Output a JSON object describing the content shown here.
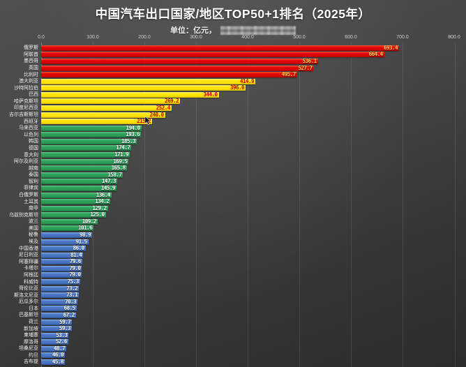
{
  "title": "中国汽车出口国家/地区TOP50+1排名（2025年）",
  "subtitle": {
    "unit_label": "单位：亿元，",
    "watermark": "redacted-mosaic"
  },
  "colors": {
    "background_top": "#505050",
    "background_bottom": "#2c2c2c",
    "tier_red": "#e00400",
    "tier_yellow": "#ffe400",
    "tier_green": "#2da15a",
    "tier_blue": "#4a77c6",
    "value_on_red": "#ffd24d",
    "value_on_yellow": "#cf0000",
    "value_on_green": "#ffffff",
    "value_on_blue": "#ffffff",
    "title_text": "#ffffff"
  },
  "chart_data": {
    "type": "bar",
    "orientation": "horizontal",
    "title": "中国汽车出口国家/地区TOP50+1排名（2025年）",
    "unit": "亿元",
    "xlabel": "",
    "ylabel": "",
    "xlim": [
      0,
      800
    ],
    "grid": true,
    "x_ticks": [
      "0.0",
      "100.0",
      "200.0",
      "300.0",
      "400.0",
      "500.0",
      "600.0",
      "700.0",
      "800.0"
    ],
    "rows": [
      {
        "category": "俄罗斯",
        "value": 693.4,
        "display": "693.4",
        "tier": "red"
      },
      {
        "category": "阿联酋",
        "value": 664.4,
        "display": "664.4",
        "tier": "red"
      },
      {
        "category": "墨西哥",
        "value": 536.1,
        "display": "536.1",
        "tier": "red"
      },
      {
        "category": "英国",
        "value": 527.7,
        "display": "527.7",
        "tier": "red"
      },
      {
        "category": "比利时",
        "value": 495.7,
        "display": "495.7",
        "tier": "red"
      },
      {
        "category": "澳大利亚",
        "value": 414.9,
        "display": "414.9",
        "tier": "yellow"
      },
      {
        "category": "沙特阿拉伯",
        "value": 396.0,
        "display": "396.0",
        "tier": "yellow"
      },
      {
        "category": "巴西",
        "value": 344.0,
        "display": "344.0",
        "tier": "yellow"
      },
      {
        "category": "哈萨克斯坦",
        "value": 269.2,
        "display": "269.2",
        "tier": "yellow"
      },
      {
        "category": "印度尼西亚",
        "value": 252.4,
        "display": "252.4",
        "tier": "yellow"
      },
      {
        "category": "吉尔吉斯斯坦",
        "value": 240.0,
        "display": "240.0",
        "tier": "yellow"
      },
      {
        "category": "西班牙",
        "value": 215.2,
        "display": "215.2",
        "tier": "yellow"
      },
      {
        "category": "马来西亚",
        "value": 194.0,
        "display": "194.0",
        "tier": "green"
      },
      {
        "category": "以色列",
        "value": 193.6,
        "display": "193.6",
        "tier": "green"
      },
      {
        "category": "韩国",
        "value": 185.3,
        "display": "185.3",
        "tier": "green"
      },
      {
        "category": "德国",
        "value": 174.7,
        "display": "174.7",
        "tier": "green"
      },
      {
        "category": "意大利",
        "value": 171.9,
        "display": "171.9",
        "tier": "green"
      },
      {
        "category": "阿尔及利亚",
        "value": 169.5,
        "display": "169.5",
        "tier": "green"
      },
      {
        "category": "越南",
        "value": 165.8,
        "display": "165.8",
        "tier": "green"
      },
      {
        "category": "泰国",
        "value": 158.7,
        "display": "158.7",
        "tier": "green"
      },
      {
        "category": "智利",
        "value": 147.3,
        "display": "147.3",
        "tier": "green"
      },
      {
        "category": "菲律宾",
        "value": 145.9,
        "display": "145.9",
        "tier": "green"
      },
      {
        "category": "白俄罗斯",
        "value": 136.4,
        "display": "136.4",
        "tier": "green"
      },
      {
        "category": "土耳其",
        "value": 134.2,
        "display": "134.2",
        "tier": "green"
      },
      {
        "category": "南非",
        "value": 129.2,
        "display": "129.2",
        "tier": "green"
      },
      {
        "category": "乌兹别克斯坦",
        "value": 125.0,
        "display": "125.0",
        "tier": "green"
      },
      {
        "category": "波兰",
        "value": 109.2,
        "display": "109.2",
        "tier": "green"
      },
      {
        "category": "美国",
        "value": 101.6,
        "display": "101.6",
        "tier": "green"
      },
      {
        "category": "秘鲁",
        "value": 98.9,
        "display": "98.9",
        "tier": "blue"
      },
      {
        "category": "埃及",
        "value": 91.5,
        "display": "91.5",
        "tier": "blue"
      },
      {
        "category": "中国香港",
        "value": 86.0,
        "display": "86.0",
        "tier": "blue"
      },
      {
        "category": "尼日利亚",
        "value": 81.4,
        "display": "81.4",
        "tier": "blue"
      },
      {
        "category": "阿塞拜疆",
        "value": 79.6,
        "display": "79.6",
        "tier": "blue"
      },
      {
        "category": "卡塔尔",
        "value": 79.0,
        "display": "79.0",
        "tier": "blue"
      },
      {
        "category": "阿根廷",
        "value": 79.0,
        "display": "79.0",
        "tier": "blue"
      },
      {
        "category": "科威特",
        "value": 75.3,
        "display": "75.3",
        "tier": "blue"
      },
      {
        "category": "哥伦比亚",
        "value": 73.2,
        "display": "73.2",
        "tier": "blue"
      },
      {
        "category": "斯洛文尼亚",
        "value": 73.1,
        "display": "73.1",
        "tier": "blue"
      },
      {
        "category": "厄瓜多尔",
        "value": 70.3,
        "display": "70.3",
        "tier": "blue"
      },
      {
        "category": "日本",
        "value": 68.5,
        "display": "68.5",
        "tier": "blue"
      },
      {
        "category": "巴基斯坦",
        "value": 67.2,
        "display": "67.2",
        "tier": "blue"
      },
      {
        "category": "荷兰",
        "value": 59.7,
        "display": "59.7",
        "tier": "blue"
      },
      {
        "category": "新加坡",
        "value": 59.3,
        "display": "59.3",
        "tier": "blue"
      },
      {
        "category": "柬埔寨",
        "value": 53.3,
        "display": "53.3",
        "tier": "blue"
      },
      {
        "category": "摩洛哥",
        "value": 52.6,
        "display": "52.6",
        "tier": "blue"
      },
      {
        "category": "坦桑尼亚",
        "value": 48.7,
        "display": "48.7",
        "tier": "blue"
      },
      {
        "category": "约旦",
        "value": 46.0,
        "display": "46.0",
        "tier": "blue"
      },
      {
        "category": "吉布提",
        "value": 45.8,
        "display": "45.8",
        "tier": "blue"
      }
    ]
  }
}
